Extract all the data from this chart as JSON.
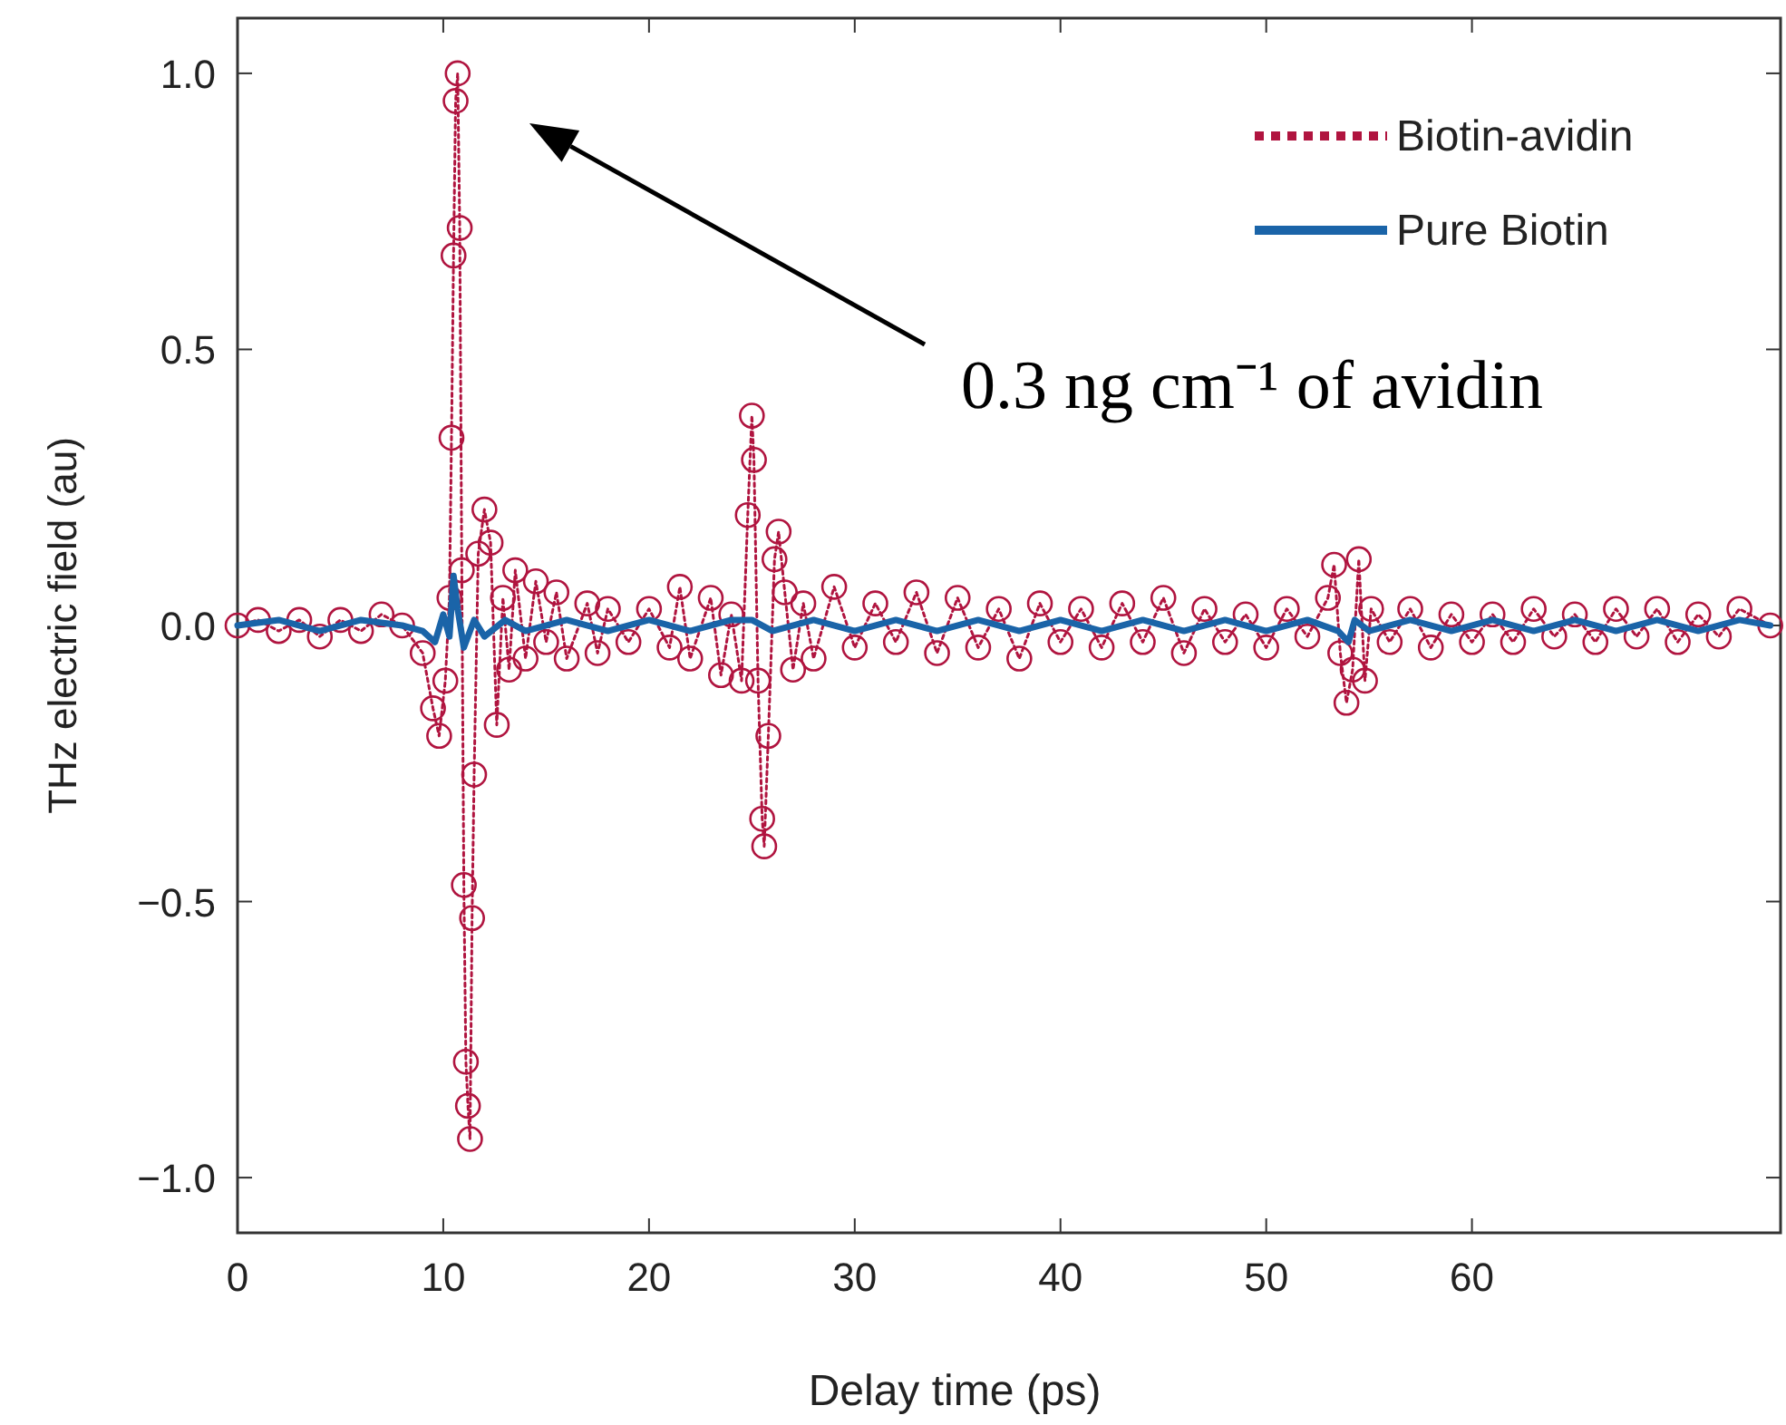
{
  "chart_data": {
    "type": "line",
    "xlabel": "Delay time (ps)",
    "ylabel": "THz electric field (au)",
    "xlim": [
      0,
      75
    ],
    "xticks": [
      0,
      10,
      20,
      30,
      40,
      50,
      60
    ],
    "ylim": [
      -1.1,
      1.1
    ],
    "yticks": [
      {
        "value": -1,
        "label": "−1.0"
      },
      {
        "value": -0.5,
        "label": "−0.5"
      },
      {
        "value": 0,
        "label": "0.0"
      },
      {
        "value": 0.5,
        "label": "0.5"
      },
      {
        "value": 1,
        "label": "1.0"
      }
    ],
    "grid": false,
    "legend": "top right",
    "annotations": [
      "0.3 ng cm⁻¹ of avidin"
    ],
    "series": [
      {
        "name": "Biotin-avidin",
        "color": "#b0143f",
        "marker": "circle",
        "line_style": "dotted",
        "x": [
          0,
          1,
          2,
          3,
          4,
          5,
          6,
          7,
          8,
          9,
          9.5,
          9.8,
          10.1,
          10.3,
          10.4,
          10.5,
          10.6,
          10.7,
          10.8,
          10.9,
          11.0,
          11.1,
          11.2,
          11.3,
          11.4,
          11.5,
          11.7,
          12.0,
          12.3,
          12.6,
          12.9,
          13.2,
          13.5,
          14,
          14.5,
          15,
          15.5,
          16,
          17,
          17.5,
          18,
          19,
          20,
          21,
          21.5,
          22,
          23,
          23.5,
          24,
          24.5,
          24.8,
          25,
          25.1,
          25.3,
          25.5,
          25.6,
          25.8,
          26.1,
          26.3,
          26.6,
          27,
          27.5,
          28,
          29,
          30,
          31,
          32,
          33,
          34,
          35,
          36,
          37,
          38,
          39,
          40,
          41,
          42,
          43,
          44,
          45,
          46,
          47,
          48,
          49,
          50,
          51,
          52,
          53,
          53.3,
          53.6,
          53.9,
          54.2,
          54.5,
          54.8,
          55.1,
          56,
          57,
          58,
          59,
          60,
          61,
          62,
          63,
          64,
          65,
          66,
          67,
          68,
          69,
          70,
          71,
          72,
          73,
          74.5
        ],
        "values": [
          0,
          0.01,
          -0.01,
          0.01,
          -0.02,
          0.01,
          -0.01,
          0.02,
          0,
          -0.05,
          -0.15,
          -0.2,
          -0.1,
          0.05,
          0.34,
          0.67,
          0.95,
          1.0,
          0.72,
          0.1,
          -0.47,
          -0.79,
          -0.87,
          -0.93,
          -0.53,
          -0.27,
          0.13,
          0.21,
          0.15,
          -0.18,
          0.05,
          -0.08,
          0.1,
          -0.06,
          0.08,
          -0.03,
          0.06,
          -0.06,
          0.04,
          -0.05,
          0.03,
          -0.03,
          0.03,
          -0.04,
          0.07,
          -0.06,
          0.05,
          -0.09,
          0.02,
          -0.1,
          0.2,
          0.38,
          0.3,
          -0.1,
          -0.35,
          -0.4,
          -0.2,
          0.12,
          0.17,
          0.06,
          -0.08,
          0.04,
          -0.06,
          0.07,
          -0.04,
          0.04,
          -0.03,
          0.06,
          -0.05,
          0.05,
          -0.04,
          0.03,
          -0.06,
          0.04,
          -0.03,
          0.03,
          -0.04,
          0.04,
          -0.03,
          0.05,
          -0.05,
          0.03,
          -0.03,
          0.02,
          -0.04,
          0.03,
          -0.02,
          0.05,
          0.11,
          -0.05,
          -0.14,
          -0.08,
          0.12,
          -0.1,
          0.03,
          -0.03,
          0.03,
          -0.04,
          0.02,
          -0.03,
          0.02,
          -0.03,
          0.03,
          -0.02,
          0.02,
          -0.03,
          0.03,
          -0.02,
          0.03,
          -0.03,
          0.02,
          -0.02,
          0.03,
          0
        ]
      },
      {
        "name": "Pure Biotin",
        "color": "#1a64a8",
        "marker": "none",
        "line_style": "solid",
        "x": [
          0,
          2,
          4,
          6,
          8,
          9,
          9.6,
          10,
          10.3,
          10.5,
          10.7,
          11,
          11.5,
          12,
          13,
          14,
          16,
          18,
          20,
          22,
          24,
          25,
          26,
          28,
          30,
          32,
          34,
          36,
          38,
          40,
          42,
          44,
          46,
          48,
          50,
          52,
          53.5,
          54,
          54.3,
          55,
          57,
          59,
          61,
          63,
          65,
          67,
          69,
          71,
          73,
          74.5
        ],
        "values": [
          0,
          0.01,
          -0.01,
          0.01,
          0,
          -0.01,
          -0.03,
          0.02,
          -0.02,
          0.09,
          0.03,
          -0.04,
          0.01,
          -0.02,
          0.01,
          -0.01,
          0.01,
          -0.01,
          0.01,
          -0.01,
          0.01,
          0.01,
          -0.01,
          0.01,
          -0.01,
          0.01,
          -0.01,
          0.01,
          -0.01,
          0.01,
          -0.01,
          0.01,
          -0.01,
          0.01,
          -0.01,
          0.01,
          -0.01,
          -0.03,
          0.01,
          -0.01,
          0.01,
          -0.01,
          0.01,
          -0.01,
          0.01,
          -0.01,
          0.01,
          -0.01,
          0.01,
          0
        ]
      }
    ]
  }
}
